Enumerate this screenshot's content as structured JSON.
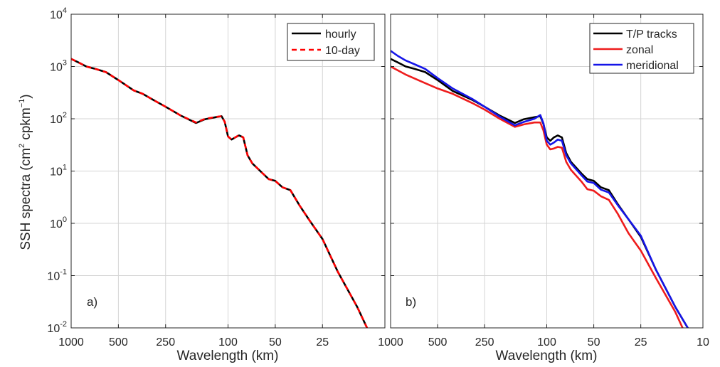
{
  "figure": {
    "ylabel_main": "SSH spectra (cm",
    "ylabel_sup1": "2",
    "ylabel_mid": " cpkm",
    "ylabel_sup2": "−1",
    "ylabel_end": ")"
  },
  "chart_data": [
    {
      "type": "line",
      "panel_label": "a)",
      "xlabel": "Wavelength (km)",
      "ylabel": "SSH spectra (cm2 cpkm−1)",
      "x_scale": "log (reversed, wavenumber)",
      "y_scale": "log",
      "xlim": [
        1000,
        10
      ],
      "ylim": [
        0.01,
        10000
      ],
      "xticks": [
        1000,
        500,
        250,
        100,
        50,
        25
      ],
      "xtick_labels": [
        "1000",
        "500",
        "250",
        "100",
        "50",
        "25"
      ],
      "ytick_base": "10",
      "ytick_exponents": [
        "-2",
        "-1",
        "0",
        "1",
        "2",
        "3",
        "4"
      ],
      "grid": true,
      "legend_position": "top-right",
      "series": [
        {
          "name": "hourly",
          "color": "#000000",
          "style": "solid",
          "x": [
            1000,
            900,
            800,
            700,
            600,
            500,
            400,
            350,
            300,
            250,
            200,
            160,
            140,
            120,
            110,
            105,
            100,
            95,
            90,
            85,
            80,
            75,
            70,
            60,
            55,
            50,
            45,
            40,
            35,
            30,
            25,
            20,
            15,
            13
          ],
          "y": [
            1400,
            1200,
            1000,
            900,
            780,
            550,
            350,
            300,
            230,
            170,
            115,
            83,
            98,
            107,
            112,
            88,
            46,
            40,
            44,
            48,
            44,
            20,
            14,
            9,
            7,
            6.5,
            4.9,
            4.3,
            2.2,
            1.1,
            0.5,
            0.12,
            0.025,
            0.01
          ]
        },
        {
          "name": "10-day",
          "color": "#ff0000",
          "style": "dashed",
          "x": [
            1000,
            900,
            800,
            700,
            600,
            500,
            400,
            350,
            300,
            250,
            200,
            160,
            140,
            120,
            110,
            105,
            100,
            95,
            90,
            85,
            80,
            75,
            70,
            60,
            55,
            50,
            45,
            40,
            35,
            30,
            25,
            20,
            15,
            13
          ],
          "y": [
            1400,
            1200,
            1000,
            900,
            780,
            550,
            350,
            300,
            230,
            170,
            115,
            85,
            100,
            108,
            112,
            88,
            46,
            40,
            44,
            49,
            44,
            20,
            14,
            9,
            7,
            6.5,
            4.9,
            4.3,
            2.2,
            1.1,
            0.5,
            0.12,
            0.025,
            0.01
          ]
        }
      ]
    },
    {
      "type": "line",
      "panel_label": "b)",
      "xlabel": "Wavelength (km)",
      "x_scale": "log (reversed, wavenumber)",
      "y_scale": "log",
      "xlim": [
        1000,
        10
      ],
      "ylim": [
        0.01,
        10000
      ],
      "xticks": [
        1000,
        500,
        250,
        100,
        50,
        25,
        10
      ],
      "xtick_labels": [
        "1000",
        "500",
        "250",
        "100",
        "50",
        "25",
        "10"
      ],
      "grid": true,
      "legend_position": "top-right",
      "series": [
        {
          "name": "T/P tracks",
          "color": "#000000",
          "style": "solid",
          "x": [
            1000,
            900,
            800,
            700,
            600,
            500,
            400,
            300,
            250,
            200,
            160,
            140,
            120,
            110,
            105,
            100,
            95,
            90,
            85,
            80,
            75,
            70,
            60,
            55,
            50,
            45,
            40,
            35,
            30,
            25,
            20,
            15,
            12.5
          ],
          "y": [
            1400,
            1200,
            1000,
            900,
            780,
            550,
            340,
            230,
            170,
            115,
            83,
            98,
            107,
            112,
            80,
            44,
            38,
            44,
            48,
            44,
            22,
            15,
            9,
            7,
            6.5,
            4.9,
            4.3,
            2.3,
            1.2,
            0.55,
            0.13,
            0.025,
            0.01
          ]
        },
        {
          "name": "zonal",
          "color": "#ee1c1c",
          "style": "solid",
          "x": [
            1000,
            800,
            600,
            500,
            400,
            300,
            250,
            200,
            160,
            140,
            120,
            110,
            105,
            100,
            95,
            90,
            85,
            80,
            75,
            70,
            60,
            55,
            50,
            45,
            40,
            35,
            30,
            25,
            20,
            15,
            13.5
          ],
          "y": [
            1000,
            700,
            480,
            380,
            300,
            200,
            150,
            100,
            70,
            78,
            85,
            85,
            60,
            32,
            26,
            27,
            29,
            28,
            15,
            10.5,
            6.3,
            4.5,
            4.2,
            3.3,
            2.8,
            1.5,
            0.65,
            0.3,
            0.09,
            0.02,
            0.01
          ]
        },
        {
          "name": "meridional",
          "color": "#1515e8",
          "style": "solid",
          "x": [
            1000,
            900,
            800,
            700,
            600,
            500,
            400,
            300,
            250,
            200,
            160,
            140,
            120,
            110,
            105,
            100,
            95,
            90,
            85,
            80,
            75,
            70,
            60,
            55,
            50,
            45,
            40,
            35,
            30,
            25,
            20,
            15,
            12.5
          ],
          "y": [
            2000,
            1600,
            1300,
            1100,
            900,
            600,
            380,
            240,
            170,
            110,
            75,
            87,
            100,
            118,
            82,
            38,
            32,
            35,
            40,
            38,
            20,
            14,
            8.3,
            6.3,
            5.9,
            4.4,
            3.9,
            2.2,
            1.2,
            0.58,
            0.13,
            0.025,
            0.01
          ]
        }
      ]
    }
  ]
}
